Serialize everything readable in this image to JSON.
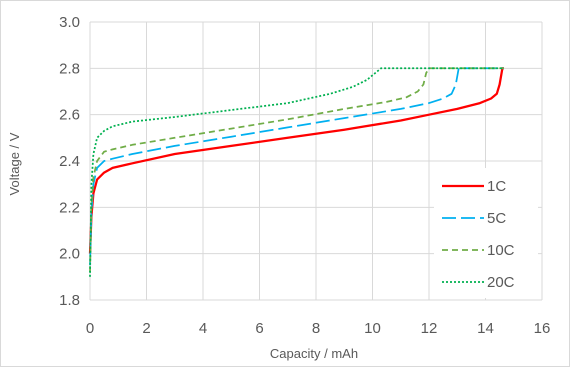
{
  "chart_data": {
    "type": "line",
    "title": "",
    "xlabel": "Capacity / mAh",
    "ylabel": "Voltage / V",
    "xlim": [
      0,
      16
    ],
    "ylim": [
      1.8,
      3.0
    ],
    "x_ticks": [
      "0",
      "2",
      "4",
      "6",
      "8",
      "10",
      "12",
      "14",
      "16"
    ],
    "y_ticks": [
      "1.8",
      "2.0",
      "2.2",
      "2.4",
      "2.6",
      "2.8",
      "3.0"
    ],
    "grid": true,
    "legend_position": "bottom-right",
    "series": [
      {
        "name": "1C",
        "color": "#ff0000",
        "dash": "solid",
        "x": [
          0,
          0.05,
          0.12,
          0.25,
          0.5,
          0.8,
          1.5,
          3,
          5,
          7,
          9,
          11,
          12,
          13,
          13.8,
          14.2,
          14.4,
          14.5,
          14.6,
          14.65
        ],
        "y": [
          2.0,
          2.16,
          2.26,
          2.32,
          2.35,
          2.37,
          2.39,
          2.43,
          2.465,
          2.5,
          2.535,
          2.575,
          2.6,
          2.625,
          2.65,
          2.67,
          2.69,
          2.73,
          2.8,
          2.8
        ]
      },
      {
        "name": "5C",
        "color": "#00b0f0",
        "dash": "long-dash",
        "x": [
          0,
          0.05,
          0.12,
          0.25,
          0.5,
          0.8,
          1.5,
          3,
          5,
          7,
          9,
          11,
          12,
          12.5,
          12.8,
          12.95,
          13.05,
          13.2,
          14.65
        ],
        "y": [
          1.95,
          2.18,
          2.3,
          2.37,
          2.4,
          2.41,
          2.43,
          2.465,
          2.505,
          2.545,
          2.585,
          2.625,
          2.65,
          2.67,
          2.69,
          2.73,
          2.8,
          2.8,
          2.8
        ]
      },
      {
        "name": "10C",
        "color": "#70ad47",
        "dash": "dash",
        "x": [
          0,
          0.05,
          0.12,
          0.25,
          0.5,
          0.8,
          1.5,
          3,
          5,
          7,
          9,
          10.5,
          11.2,
          11.6,
          11.8,
          11.9,
          12.0,
          14.65
        ],
        "y": [
          1.92,
          2.2,
          2.33,
          2.4,
          2.44,
          2.45,
          2.47,
          2.5,
          2.54,
          2.58,
          2.625,
          2.655,
          2.675,
          2.7,
          2.73,
          2.78,
          2.8,
          2.8
        ]
      },
      {
        "name": "20C",
        "color": "#00b050",
        "dash": "dot",
        "x": [
          0,
          0.05,
          0.12,
          0.25,
          0.5,
          0.8,
          1.5,
          3,
          5,
          7,
          8.5,
          9.3,
          9.8,
          10.1,
          10.3,
          14.65
        ],
        "y": [
          1.9,
          2.3,
          2.43,
          2.5,
          2.53,
          2.55,
          2.57,
          2.59,
          2.62,
          2.65,
          2.69,
          2.72,
          2.75,
          2.78,
          2.8,
          2.8
        ]
      }
    ]
  }
}
